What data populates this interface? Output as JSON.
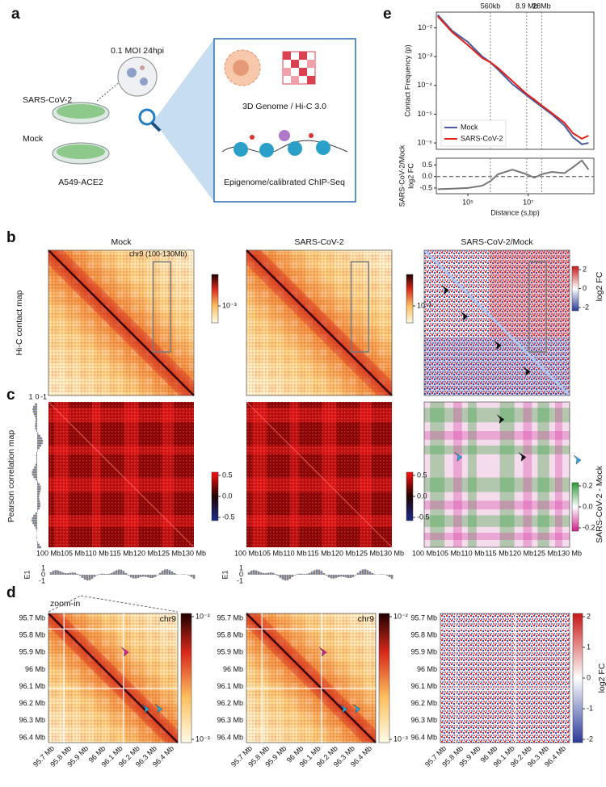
{
  "panel_labels": [
    "a",
    "b",
    "c",
    "d",
    "e"
  ],
  "panel_a": {
    "condition": "0.1 MOI 24hpi",
    "samples": [
      "SARS-CoV-2",
      "Mock"
    ],
    "cell_line": "A549-ACE2",
    "assays": [
      "3D Genome / Hi-C 3.0",
      "Epigenome/calibrated ChIP-Seq"
    ]
  },
  "panel_b": {
    "row_label": "Hi-C contact map",
    "columns": [
      "Mock",
      "SARS-CoV-2",
      "SARS-CoV-2/Mock"
    ],
    "region": "chr9 (100-130Mb)",
    "colorbar_ticks": [
      "10⁻³"
    ],
    "fc_label": "log2 FC",
    "fc_ticks": [
      "2",
      "0",
      "-2"
    ]
  },
  "panel_c": {
    "row_label": "Pearson correlation map",
    "colorbar_ticks": [
      "0.5",
      "0.0",
      "-0.5"
    ],
    "diff_label": "SARS-CoV-2 - Mock",
    "diff_ticks": [
      "0.2",
      "0.0",
      "-0.2"
    ],
    "x_ticks": [
      "100 Mb",
      "105 Mb",
      "110 Mb",
      "115 Mb",
      "120 Mb",
      "125 Mb",
      "130 Mb"
    ],
    "track_label": "E1",
    "track_ticks": [
      "1",
      "0",
      "-1"
    ]
  },
  "panel_d": {
    "zoom_label": "zoom-in",
    "chrom": "chr9",
    "ticks": [
      "95.7 Mb",
      "95.8 Mb",
      "95.9 Mb",
      "96 Mb",
      "96.1 Mb",
      "96.2 Mb",
      "96.3 Mb",
      "96.4 Mb"
    ],
    "colorbar_ticks": [
      "10⁻²",
      "10⁻³"
    ],
    "fc_label": "log2 FC",
    "fc_ticks": [
      "2",
      "1",
      "0",
      "-1",
      "-2"
    ]
  },
  "chart_data": [
    {
      "type": "line",
      "ylabel": "Contact Frequency (p)",
      "log_x": true,
      "log_y": true,
      "x": [
        10000,
        30000,
        100000,
        300000,
        560000,
        1000000,
        3000000,
        8900000,
        16000000,
        28000000,
        60000000,
        160000000,
        300000000,
        600000000,
        1000000000
      ],
      "xlim": [
        9000,
        1500000000
      ],
      "ylim": [
        6e-07,
        0.035
      ],
      "yticks": [
        {
          "value": 0.01,
          "label": "10⁻²"
        },
        {
          "value": 0.001,
          "label": "10⁻³"
        },
        {
          "value": 0.0001,
          "label": "10⁻⁴"
        },
        {
          "value": 1e-05,
          "label": "10⁻⁵"
        },
        {
          "value": 1e-06,
          "label": "10⁻⁶"
        }
      ],
      "vlines": [
        {
          "value": 560000,
          "label": "560kb"
        },
        {
          "value": 8900000,
          "label": "8.9 Mb"
        },
        {
          "value": 28000000,
          "label": "28Mb"
        }
      ],
      "legend": "lower left",
      "series": [
        {
          "name": "Mock",
          "color": "#4a5a9a",
          "values": [
            0.028,
            0.0079,
            0.0032,
            0.001,
            0.00063,
            0.00035,
            0.00011,
            4.5e-05,
            2.8e-05,
            1.8e-05,
            1e-05,
            4e-06,
            1.6e-06,
            9e-07,
            1e-06
          ]
        },
        {
          "name": "SARS-CoV-2",
          "color": "#e0201b",
          "values": [
            0.025,
            0.0071,
            0.0025,
            0.00089,
            0.00063,
            0.0004,
            0.00014,
            5e-05,
            3.2e-05,
            2e-05,
            1.1e-05,
            5e-06,
            2.2e-06,
            1.4e-06,
            1.8e-06
          ]
        }
      ]
    },
    {
      "type": "line",
      "ylabel": [
        "SARS-CoV-2/Mock",
        "log2 FC"
      ],
      "xlabel": "Distance (s,bp)",
      "log_x": true,
      "x": [
        10000,
        30000,
        100000,
        300000,
        560000,
        1000000,
        3000000,
        8900000,
        16000000,
        28000000,
        60000000,
        160000000,
        300000000,
        600000000,
        1000000000
      ],
      "xlim": [
        9000,
        1500000000
      ],
      "ylim": [
        -0.75,
        0.8
      ],
      "xticks": [
        {
          "value": 100000,
          "label": "10⁵"
        },
        {
          "value": 10000000,
          "label": "10⁷"
        }
      ],
      "yticks": [
        0.5,
        {
          "value": 0,
          "label": "0.0"
        },
        -0.5
      ],
      "vlines": [
        560000,
        8900000,
        28000000
      ],
      "zero_line": true,
      "series": [
        {
          "color": "#777777",
          "values": [
            -0.55,
            -0.53,
            -0.5,
            -0.4,
            -0.2,
            0.1,
            0.3,
            0.1,
            -0.05,
            0.1,
            0.2,
            0.15,
            0.4,
            0.7,
            0.3
          ]
        }
      ]
    }
  ]
}
